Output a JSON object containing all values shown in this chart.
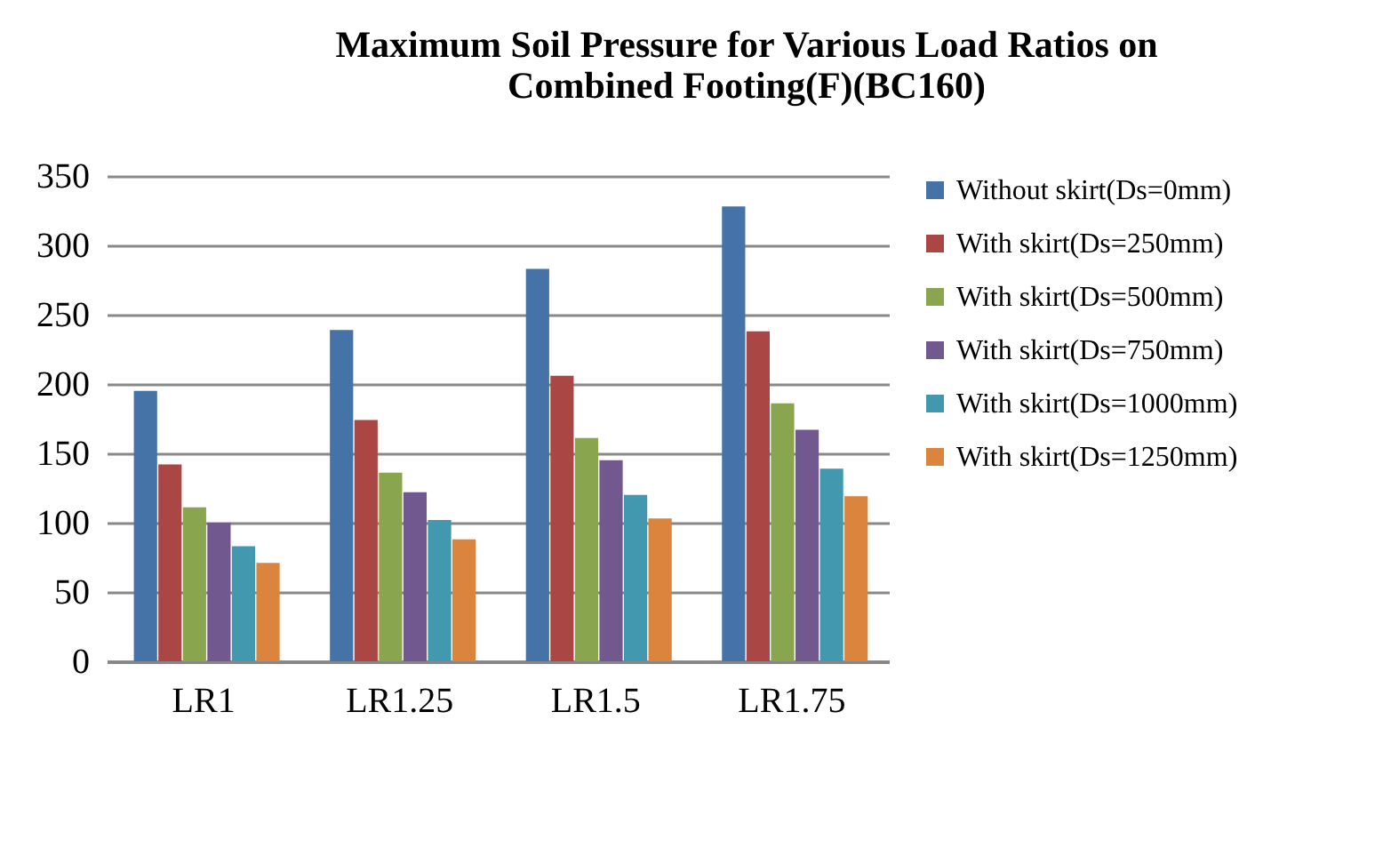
{
  "chart_data": {
    "type": "bar",
    "title": [
      "Maximum Soil Pressure for Various Load Ratios on",
      "Combined Footing(F)(BC160)"
    ],
    "categories": [
      "LR1",
      "LR1.25",
      "LR1.5",
      "LR1.75"
    ],
    "series": [
      {
        "name": "Without skirt(Ds=0mm)",
        "color": "#4572a7",
        "values": [
          195,
          239,
          283,
          328
        ]
      },
      {
        "name": "With skirt(Ds=250mm)",
        "color": "#aa4643",
        "values": [
          142,
          174,
          206,
          238
        ]
      },
      {
        "name": "With skirt(Ds=500mm)",
        "color": "#89a54e",
        "values": [
          111,
          136,
          161,
          186
        ]
      },
      {
        "name": "With skirt(Ds=750mm)",
        "color": "#71588f",
        "values": [
          100,
          122,
          145,
          167
        ]
      },
      {
        "name": "With skirt(Ds=1000mm)",
        "color": "#4198af",
        "values": [
          83,
          102,
          120,
          139
        ]
      },
      {
        "name": "With skirt(Ds=1250mm)",
        "color": "#db843d",
        "values": [
          71,
          88,
          103,
          119
        ]
      }
    ],
    "ylim": [
      0,
      350
    ],
    "yticks": [
      0,
      50,
      100,
      150,
      200,
      250,
      300,
      350
    ],
    "grid": "y",
    "legend": "right"
  }
}
